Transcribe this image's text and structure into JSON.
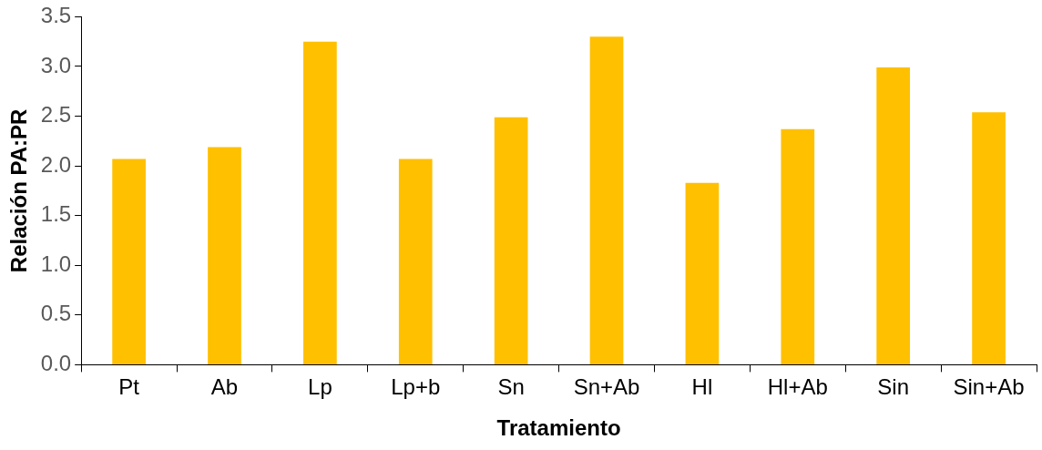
{
  "chart_data": {
    "type": "bar",
    "xlabel": "Tratamiento",
    "ylabel": "Relación PA:PR",
    "categories": [
      "Pt",
      "Ab",
      "Lp",
      "Lp+b",
      "Sn",
      "Sn+Ab",
      "Hl",
      "Hl+Ab",
      "Sin",
      "Sin+Ab"
    ],
    "values": [
      2.07,
      2.19,
      3.25,
      2.07,
      2.49,
      3.3,
      1.83,
      2.37,
      2.99,
      2.54
    ],
    "color": "#ffc000",
    "ylim": [
      0,
      3.5
    ],
    "yticks": [
      {
        "value": 0,
        "label": "0.0"
      },
      {
        "value": 0.5,
        "label": "0.5"
      },
      {
        "value": 1,
        "label": "1.0"
      },
      {
        "value": 1.5,
        "label": "1.5"
      },
      {
        "value": 2,
        "label": "2.0"
      },
      {
        "value": 2.5,
        "label": "2.5"
      },
      {
        "value": 3,
        "label": "3.0"
      },
      {
        "value": 3.5,
        "label": "3.5"
      }
    ],
    "grid": false,
    "legend": false
  }
}
